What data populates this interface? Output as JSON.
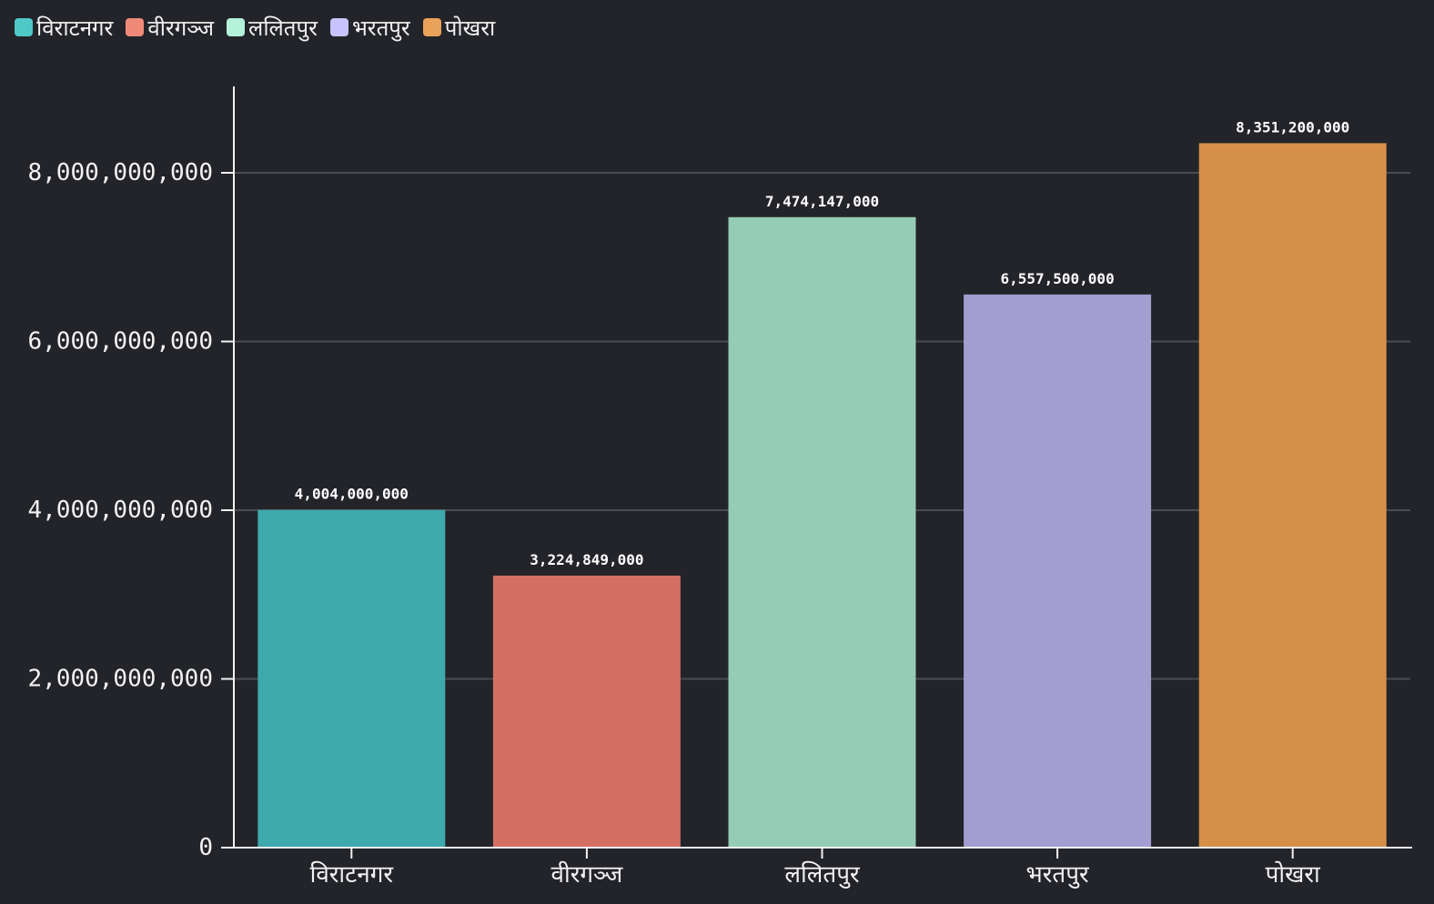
{
  "chart_data": {
    "type": "bar",
    "categories": [
      "विराटनगर",
      "वीरगञ्ज",
      "ललितपुर",
      "भरतपुर",
      "पोखरा"
    ],
    "values": [
      4004000000,
      3224849000,
      7474147000,
      6557500000,
      8351200000
    ],
    "value_labels": [
      "4,004,000,000",
      "3,224,849,000",
      "7,474,147,000",
      "6,557,500,000",
      "8,351,200,000"
    ],
    "colors": [
      "#3ea9ac",
      "#d36f65",
      "#95ccb5",
      "#a39dd0",
      "#d68f49"
    ],
    "legend": {
      "placement": "top-left",
      "entries": [
        "विराटनगर",
        "वीरगञ्ज",
        "ललितपुर",
        "भरतपुर",
        "पोखरा"
      ],
      "swatch_colors": [
        "#4fc8c8",
        "#f08a78",
        "#b4f2da",
        "#c9c2ff",
        "#e9a25a"
      ]
    },
    "y_ticks": [
      0,
      2000000000,
      4000000000,
      6000000000,
      8000000000
    ],
    "y_tick_labels": [
      "0",
      "2,000,000,000",
      "4,000,000,000",
      "6,000,000,000",
      "8,000,000,000"
    ],
    "ylim": [
      0,
      9000000000
    ],
    "grid": true,
    "title": "",
    "xlabel": "",
    "ylabel": ""
  }
}
